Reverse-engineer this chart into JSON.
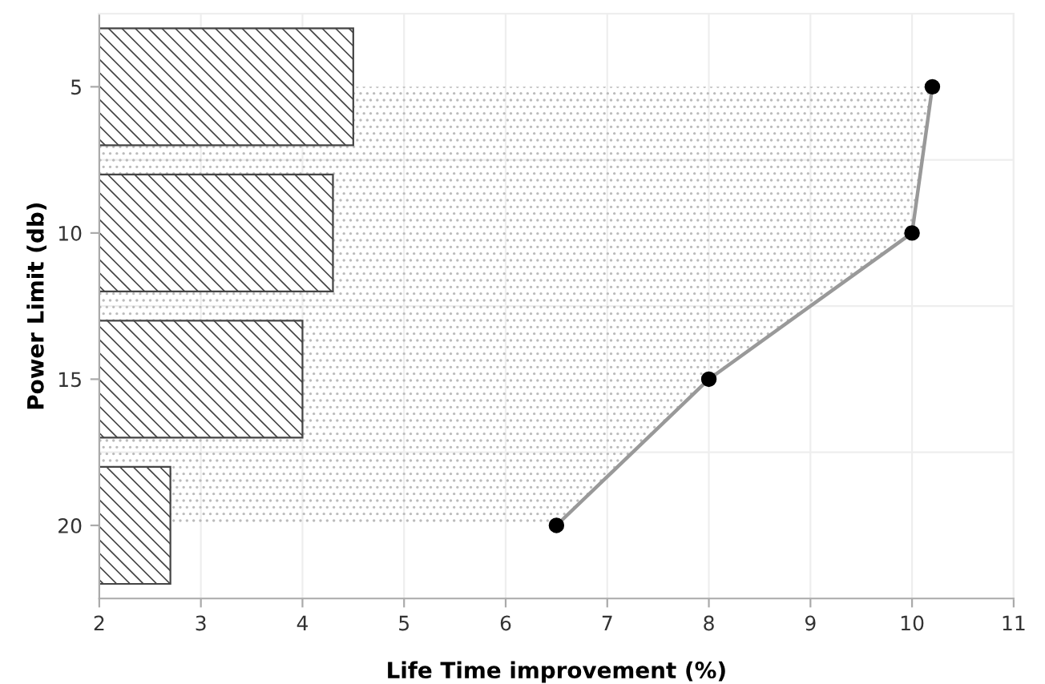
{
  "chart_data": {
    "type": "bar",
    "orientation": "horizontal",
    "xlabel": "Life Time improvement (%)",
    "ylabel": "Power Limit (db)",
    "categories": [
      "5",
      "10",
      "15",
      "20"
    ],
    "series": [
      {
        "color": "#444444",
        "values": [
          4.5,
          4.3,
          4.0,
          2.7
        ]
      },
      {
        "type": "area",
        "color": "#999999",
        "values": [
          10.2,
          10.0,
          8.0,
          6.5
        ]
      }
    ],
    "xlim": [
      2,
      11
    ],
    "xticks": [
      2,
      3,
      4,
      5,
      6,
      7,
      8,
      9,
      10,
      11
    ],
    "grid": true,
    "marker": "circle"
  }
}
